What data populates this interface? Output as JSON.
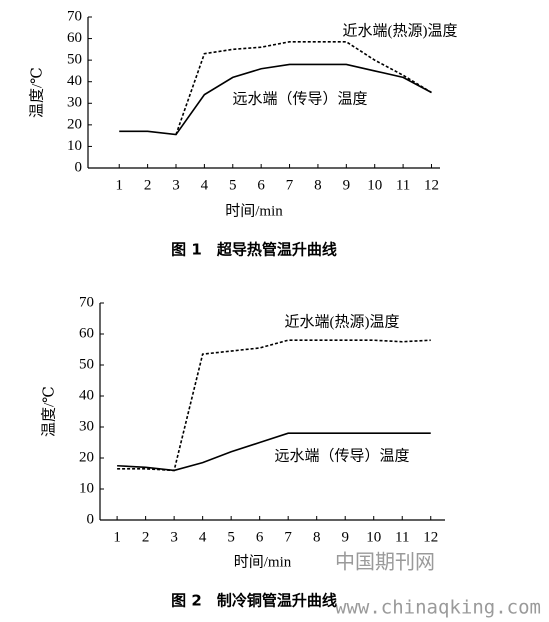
{
  "chart_data": [
    {
      "type": "line",
      "xlabel": "时间/min",
      "ylabel": "温度/℃",
      "caption": "图 1　超导热管温升曲线",
      "x": [
        1,
        2,
        3,
        4,
        5,
        6,
        7,
        8,
        9,
        10,
        11,
        12
      ],
      "xlim": [
        -0.1,
        12.3
      ],
      "xticks": [
        1,
        2,
        3,
        4,
        5,
        6,
        7,
        8,
        9,
        10,
        11,
        12
      ],
      "ylim": [
        0,
        70
      ],
      "yticks": [
        0,
        10,
        20,
        30,
        40,
        50,
        60,
        70
      ],
      "series": [
        {
          "name": "近水端(热源)温度",
          "color": "#000000",
          "style": "dashed",
          "values": [
            null,
            null,
            15.5,
            53,
            55,
            56,
            58.5,
            58.5,
            58.5,
            50,
            43,
            35
          ]
        },
        {
          "name": "远水端（传导）温度",
          "color": "#000000",
          "style": "solid",
          "values": [
            17,
            17,
            15.5,
            34,
            42,
            46,
            48,
            48,
            48,
            45,
            42,
            35
          ]
        }
      ]
    },
    {
      "type": "line",
      "xlabel": "时间/min",
      "ylabel": "温度/℃",
      "caption": "图 2　制冷铜管温升曲线",
      "x": [
        1,
        2,
        3,
        4,
        5,
        6,
        7,
        8,
        9,
        10,
        11,
        12
      ],
      "xlim": [
        0.4,
        12.5
      ],
      "xticks": [
        1,
        2,
        3,
        4,
        5,
        6,
        7,
        8,
        9,
        10,
        11,
        12
      ],
      "ylim": [
        0,
        70
      ],
      "yticks": [
        0,
        10,
        20,
        30,
        40,
        50,
        60,
        70
      ],
      "series": [
        {
          "name": "近水端(热源)温度",
          "color": "#000000",
          "style": "dashed",
          "values": [
            16.5,
            16.5,
            16,
            53.5,
            54.5,
            55.5,
            58,
            58,
            58,
            58,
            57.5,
            58
          ]
        },
        {
          "name": "远水端（传导）温度",
          "color": "#000000",
          "style": "solid",
          "values": [
            17.5,
            17,
            16,
            18.5,
            22,
            25,
            28,
            28,
            28,
            28,
            28,
            28
          ]
        }
      ]
    }
  ],
  "watermark": {
    "site": "中国期刊网",
    "url": "www.chinaqking.com"
  }
}
